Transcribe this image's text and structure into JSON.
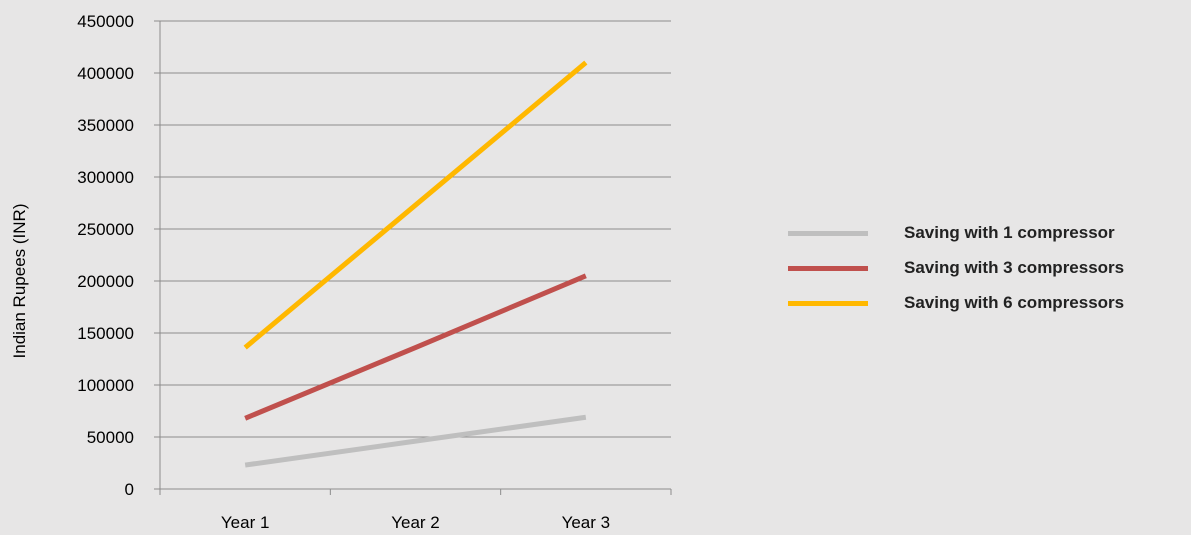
{
  "chart_data": {
    "type": "line",
    "categories": [
      "Year 1",
      "Year 2",
      "Year 3"
    ],
    "series": [
      {
        "name": "Saving with 1 compressor",
        "values": [
          23000,
          46000,
          69000
        ],
        "color": "#bfbfbf"
      },
      {
        "name": "Saving with 3 compressors",
        "values": [
          68000,
          136000,
          205000
        ],
        "color": "#c0504d"
      },
      {
        "name": "Saving with 6 compressors",
        "values": [
          136000,
          273000,
          410000
        ],
        "color": "#ffb800"
      }
    ],
    "ylabel": "Indian Rupees (INR)",
    "xlabel": "",
    "title": "",
    "ylim": [
      0,
      450000
    ],
    "yticks": [
      0,
      50000,
      100000,
      150000,
      200000,
      250000,
      300000,
      350000,
      400000,
      450000
    ],
    "ytick_labels": [
      "0",
      "50000",
      "100000",
      "150000",
      "200000",
      "250000",
      "300000",
      "350000",
      "400000",
      "450000"
    ],
    "grid": true,
    "legend_position": "right"
  }
}
